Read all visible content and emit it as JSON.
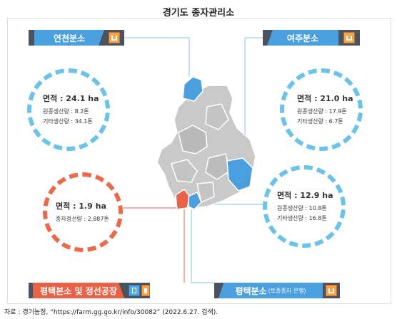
{
  "title": "경기도 종자관리소",
  "branches": {
    "yeoncheon": {
      "label": "연천분소",
      "area": "면적 : 24.1 ha",
      "line1": "원종생산량 : 8.2톤",
      "line2": "기타생산량 : 34.1톤",
      "color": "#4aa0de"
    },
    "yeoju": {
      "label": "여주분소",
      "area": "면적 : 21.0 ha",
      "line1": "원종생산량 : 17.9톤",
      "line2": "기타생산량 : 6.7톤",
      "color": "#4aa0de"
    },
    "pyeongtaek_main": {
      "label": "평택본소 및 정선공장",
      "area": "면적 : 1.9 ha",
      "line1": "종자정선량 : 2,887톤",
      "color": "#ea6246"
    },
    "pyeongtaek_branch": {
      "label": "평택분소",
      "label_suffix": "(토종종자 은행)",
      "area": "면적 : 12.9 ha",
      "line1": "원종생산량 : 10.8톤",
      "line2": "기타생산량 : 16.8톤",
      "color": "#4aa0de"
    }
  },
  "icons": [
    "factory-icon",
    "book-icon"
  ],
  "map_colors": {
    "region": "#c9c9c9",
    "border": "#ffffff",
    "highlight_blue": "#4aa0de",
    "highlight_red": "#ea6246"
  },
  "source": "자료 : 경기농정, “https://farm.gg.go.kr/info/30082” (2022.6.27. 검색)."
}
